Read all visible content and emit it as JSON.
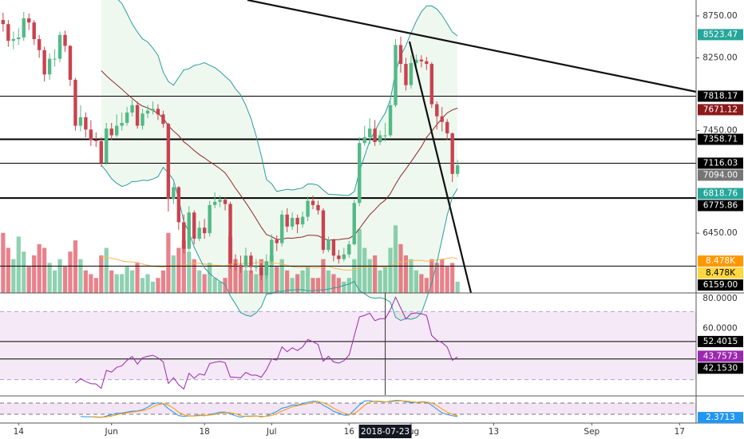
{
  "chart_data": {
    "type": "candlestick",
    "log_scale": true,
    "xlim": [
      -0.6,
      134.2
    ],
    "xticks": [
      {
        "value": 3,
        "label": "14"
      },
      {
        "value": 21,
        "label": "Jun"
      },
      {
        "value": 39,
        "label": "18"
      },
      {
        "value": 52,
        "label": "Jul"
      },
      {
        "value": 67,
        "label": "16"
      },
      {
        "value": 79,
        "label": "Aug"
      },
      {
        "value": 95,
        "label": "13"
      },
      {
        "value": 114,
        "label": "Sep"
      },
      {
        "value": 131,
        "label": "17"
      }
    ],
    "ylim": [
      5931,
      8948
    ],
    "yticks": [
      {
        "value": 8750,
        "label": "8750.00"
      },
      {
        "value": 8250,
        "label": "8250.00"
      },
      {
        "value": 7450,
        "label": "7450.00"
      },
      {
        "value": 6450,
        "label": "6450.00"
      }
    ],
    "open": [
      8700,
      8650,
      8450,
      8470,
      8490,
      8720,
      8670,
      8470,
      8340,
      8060,
      8240,
      8240,
      8520,
      8390,
      8000,
      7500,
      7590,
      7460,
      7350,
      7340,
      7120,
      7470,
      7400,
      7500,
      7530,
      7640,
      7720,
      7500,
      7630,
      7660,
      7680,
      7620,
      7520,
      6770,
      6880,
      6550,
      6310,
      6640,
      6400,
      6500,
      6450,
      6710,
      6740,
      6760,
      6720,
      6180,
      6170,
      6150,
      6250,
      6150,
      6150,
      6080,
      6200,
      6390,
      6360,
      6620,
      6510,
      6590,
      6530,
      6600,
      6750,
      6710,
      6660,
      6300,
      6390,
      6250,
      6220,
      6260,
      6350,
      6730,
      7320,
      7380,
      7470,
      7330,
      7400,
      7400,
      7720,
      8400,
      8180,
      7940,
      8190,
      8230,
      8210,
      8180,
      7730,
      7600,
      7540,
      7420,
      7010
    ],
    "high": [
      8790,
      8700,
      8560,
      8600,
      8800,
      8780,
      8700,
      8520,
      8380,
      8300,
      8350,
      8560,
      8570,
      8400,
      8020,
      7720,
      7640,
      7560,
      7430,
      7380,
      7530,
      7530,
      7620,
      7640,
      7700,
      7780,
      7760,
      7680,
      7720,
      7760,
      7730,
      7660,
      7530,
      6920,
      6890,
      6620,
      6700,
      6660,
      6560,
      6580,
      6750,
      6830,
      6800,
      6780,
      6740,
      6260,
      6250,
      6320,
      6280,
      6220,
      6180,
      6260,
      6440,
      6430,
      6660,
      6680,
      6640,
      6620,
      6650,
      6790,
      6800,
      6750,
      6680,
      6420,
      6400,
      6300,
      6320,
      6380,
      6760,
      7380,
      7500,
      7580,
      7560,
      7450,
      7530,
      7760,
      8470,
      8500,
      8250,
      8280,
      8290,
      8280,
      8260,
      8200,
      7760,
      7700,
      7570,
      7430,
      7150
    ],
    "low": [
      8560,
      8380,
      8350,
      8400,
      8450,
      8580,
      8400,
      8250,
      7980,
      8000,
      8150,
      8200,
      8320,
      7930,
      7450,
      7440,
      7380,
      7290,
      7280,
      7080,
      7100,
      7350,
      7380,
      7450,
      7500,
      7600,
      7470,
      7460,
      7580,
      7620,
      7560,
      7480,
      6650,
      6720,
      6480,
      6270,
      6290,
      6350,
      6380,
      6400,
      6420,
      6680,
      6690,
      6660,
      6140,
      6120,
      6100,
      6120,
      6100,
      6110,
      6040,
      6050,
      6180,
      6290,
      6330,
      6460,
      6480,
      6450,
      6500,
      6560,
      6670,
      6620,
      6270,
      6280,
      6200,
      6180,
      6200,
      6230,
      6340,
      6700,
      7290,
      7310,
      7290,
      7300,
      7340,
      7380,
      7700,
      8080,
      7880,
      7900,
      8120,
      8140,
      8110,
      7690,
      7460,
      7440,
      7350,
      6930,
      6980
    ],
    "close": [
      8650,
      8450,
      8470,
      8490,
      8720,
      8670,
      8470,
      8340,
      8060,
      8240,
      8240,
      8520,
      8390,
      8000,
      7500,
      7590,
      7460,
      7350,
      7340,
      7120,
      7470,
      7400,
      7500,
      7530,
      7640,
      7720,
      7500,
      7630,
      7660,
      7680,
      7620,
      7520,
      6770,
      6880,
      6550,
      6310,
      6640,
      6400,
      6500,
      6450,
      6710,
      6740,
      6760,
      6720,
      6180,
      6170,
      6150,
      6250,
      6150,
      6150,
      6080,
      6200,
      6390,
      6360,
      6620,
      6510,
      6590,
      6530,
      6600,
      6750,
      6710,
      6660,
      6300,
      6390,
      6250,
      6220,
      6260,
      6350,
      6730,
      7320,
      7380,
      7470,
      7330,
      7400,
      7400,
      7720,
      8400,
      8180,
      7940,
      8190,
      8230,
      8210,
      8180,
      7730,
      7600,
      7540,
      7420,
      7010,
      7094
    ],
    "up_color": "#53b987",
    "down_color": "#c8434f",
    "volume": [
      16000,
      12000,
      9000,
      15000,
      11000,
      7000,
      10000,
      13000,
      12000,
      8000,
      6000,
      9000,
      7000,
      11000,
      14000,
      9000,
      6000,
      5000,
      4000,
      10000,
      12000,
      6000,
      5000,
      5000,
      7000,
      6000,
      8000,
      4000,
      5000,
      3000,
      4000,
      6000,
      16000,
      10000,
      12000,
      14000,
      11000,
      9000,
      6000,
      5000,
      8000,
      4000,
      3000,
      4000,
      15000,
      9000,
      7000,
      6000,
      6000,
      5000,
      9000,
      8000,
      10000,
      7000,
      9000,
      6000,
      4000,
      5000,
      6000,
      7000,
      4000,
      4000,
      9000,
      6000,
      5000,
      4000,
      3000,
      4000,
      9000,
      17000,
      12000,
      9000,
      10000,
      6000,
      7000,
      12000,
      18000,
      13000,
      10000,
      9000,
      6000,
      5000,
      4000,
      9000,
      8000,
      9000,
      7000,
      8000,
      3000
    ],
    "vlim": [
      0,
      78000
    ],
    "price_markers": [
      {
        "value": 8523.47,
        "color": "#26a69a"
      },
      {
        "value": 7818.17,
        "color": "#000000",
        "line": true,
        "line_width": 1
      },
      {
        "value": 7671.12,
        "color": "#8b1a1a"
      },
      {
        "value": 7358.71,
        "color": "#000000",
        "line": true,
        "line_width": 2
      },
      {
        "value": 7116.03,
        "color": "#000000",
        "line": true,
        "line_width": 1
      },
      {
        "value": 7094,
        "label": "7094.00",
        "color": "#757575"
      },
      {
        "value": 6818.76,
        "color": "#26a69a"
      },
      {
        "value": 6775.86,
        "color": "#000000",
        "line": true,
        "line_width": 2
      },
      {
        "value": 6159,
        "label": "6159.00",
        "color": "#000000",
        "line": true,
        "line_width": 1
      }
    ],
    "volume_markers": [
      {
        "value": 8478,
        "label": "8.478K",
        "color": "#ff9800"
      },
      {
        "value": 8478,
        "label": "8.478K",
        "color": "#ffd740"
      }
    ],
    "crosshair": {
      "x": 74,
      "label": "2018-07-23"
    },
    "rsi": {
      "ylim": [
        20.9,
        80.5
      ],
      "yticks": [
        {
          "value": 80,
          "label": "80.0000"
        },
        {
          "value": 60,
          "label": "60.0000"
        }
      ],
      "bands": [
        70,
        30
      ],
      "color": "#9c27b0",
      "markers": [
        {
          "value": 52.4015,
          "color": "#000000",
          "line": true
        },
        {
          "value": 43.7573,
          "color": "#9c27b0"
        },
        {
          "value": 42.153,
          "label": "42.1530",
          "color": "#000000",
          "line": true
        }
      ]
    },
    "stoch": {
      "ylim": [
        -27.1,
        114.3
      ],
      "bands": [
        80,
        20
      ],
      "k_color": "#2196f3",
      "d_color": "#ff9800",
      "markers": [
        {
          "value": 2.3713,
          "color": "#2196f3"
        }
      ]
    }
  }
}
